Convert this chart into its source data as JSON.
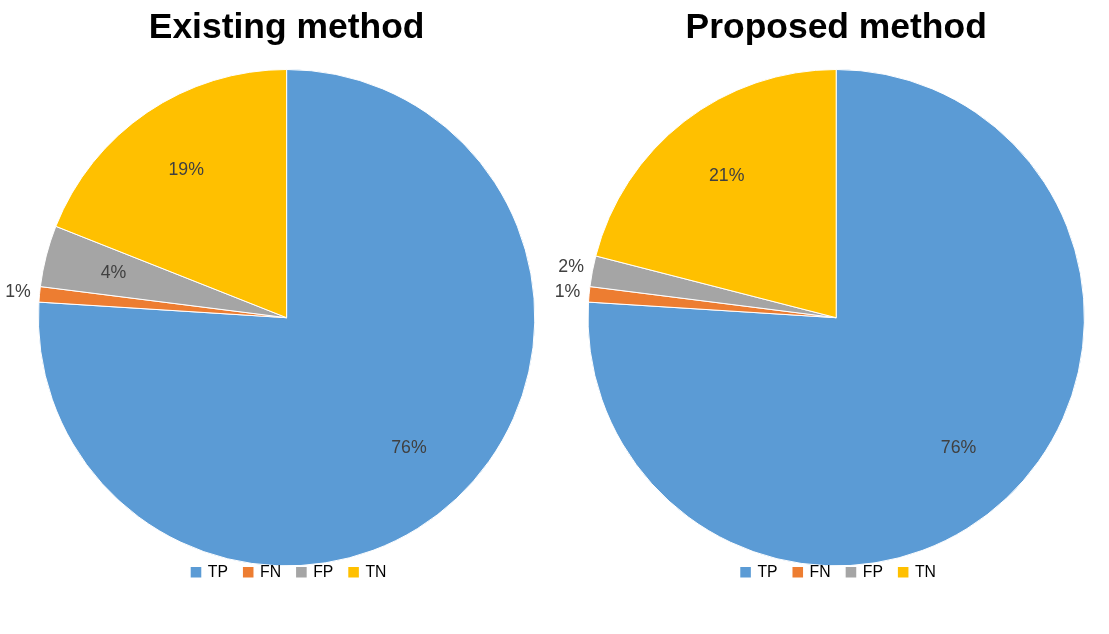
{
  "chart_data": [
    {
      "type": "pie",
      "title": "Existing method",
      "categories": [
        "TP",
        "FN",
        "FP",
        "TN"
      ],
      "values": [
        76,
        1,
        4,
        19
      ],
      "colors": [
        "#5b9bd5",
        "#ed7d31",
        "#a5a5a5",
        "#ffc000"
      ],
      "value_labels": [
        "76%",
        "1%",
        "4%",
        "19%"
      ],
      "legend": "bottom"
    },
    {
      "type": "pie",
      "title": "Proposed method",
      "categories": [
        "TP",
        "FN",
        "FP",
        "TN"
      ],
      "values": [
        76,
        1,
        2,
        21
      ],
      "colors": [
        "#5b9bd5",
        "#ed7d31",
        "#a5a5a5",
        "#ffc000"
      ],
      "value_labels": [
        "76%",
        "1%",
        "2%",
        "21%"
      ],
      "legend": "bottom"
    }
  ]
}
